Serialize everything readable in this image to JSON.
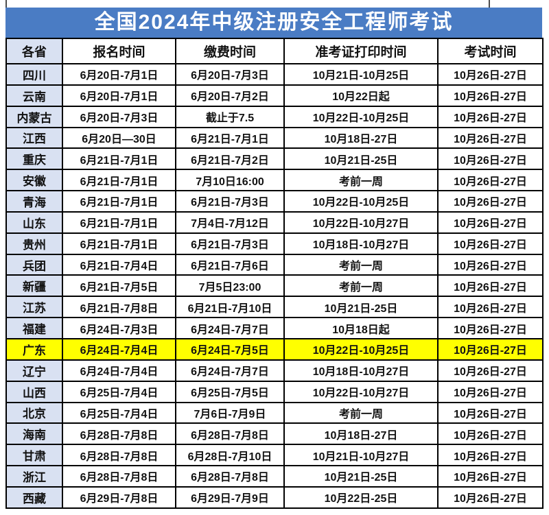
{
  "title": "全国2024年中级注册安全工程师考试",
  "colors": {
    "title_bg": "#4a7cc4",
    "title_text": "#ffffff",
    "province_col_bg": "#d9e1f2",
    "highlight_bg": "#ffff00",
    "grid_border": "#000000"
  },
  "table": {
    "headers": [
      "各省",
      "报名时间",
      "缴费时间",
      "准考证打印时间",
      "考试时间"
    ],
    "rows": [
      {
        "province": "四川",
        "cells": [
          "6月20日-7月1日",
          "6月20日-7月3日",
          "10月21日-10月25日",
          "10月26日-27日"
        ],
        "highlight": false
      },
      {
        "province": "云南",
        "cells": [
          "6月20日-7月1日",
          "6月20日-7月2日",
          "10月22日起",
          "10月26日-27日"
        ],
        "highlight": false
      },
      {
        "province": "内蒙古",
        "cells": [
          "6月20日-7月3日",
          "截止于7.5",
          "10月22日-10月25日",
          "10月26日-27日"
        ],
        "highlight": false
      },
      {
        "province": "江西",
        "cells": [
          "6月20日—30日",
          "6月21日-7月1日",
          "10月18日-27日",
          "10月26日-27日"
        ],
        "highlight": false
      },
      {
        "province": "重庆",
        "cells": [
          "6月21日-7月1日",
          "6月21日-7月2日",
          "10月21日-25日",
          "10月26日-27日"
        ],
        "highlight": false
      },
      {
        "province": "安徽",
        "cells": [
          "6月21日-7月1日",
          "7月10日16:00",
          "考前一周",
          "10月26日-27日"
        ],
        "highlight": false
      },
      {
        "province": "青海",
        "cells": [
          "6月21日-7月1日",
          "6月21日-7月3日",
          "10月22日-10月25日",
          "10月26日-27日"
        ],
        "highlight": false
      },
      {
        "province": "山东",
        "cells": [
          "6月21日-7月1日",
          "7月4日-7月12日",
          "10月22日-10月27日",
          "10月26日-27日"
        ],
        "highlight": false
      },
      {
        "province": "贵州",
        "cells": [
          "6月21日-7月1日",
          "6月21日-7月3日",
          "10月18日-10月27日",
          "10月26日-27日"
        ],
        "highlight": false
      },
      {
        "province": "兵团",
        "cells": [
          "6月21日-7月4日",
          "6月21日-7月6日",
          "考前一周",
          "10月26日-27日"
        ],
        "highlight": false
      },
      {
        "province": "新疆",
        "cells": [
          "6月21日-7月5日",
          "7月5日23:00",
          "考前一周",
          "10月26日-27日"
        ],
        "highlight": false
      },
      {
        "province": "江苏",
        "cells": [
          "6月21日-7月8日",
          "6月21日-7月10日",
          "10月21日-25日",
          "10月26日-27日"
        ],
        "highlight": false
      },
      {
        "province": "福建",
        "cells": [
          "6月24日-7月3日",
          "6月24日-7月7日",
          "10月18日起",
          "10月26日-27日"
        ],
        "highlight": false
      },
      {
        "province": "广东",
        "cells": [
          "6月24日-7月4日",
          "6月24日-7月5日",
          "10月22日-10月25日",
          "10月26日-27日"
        ],
        "highlight": true
      },
      {
        "province": "辽宁",
        "cells": [
          "6月24日-7月4日",
          "6月24日-7月7日",
          "10月18日-10月27日",
          "10月26日-27日"
        ],
        "highlight": false
      },
      {
        "province": "山西",
        "cells": [
          "6月25日-7月4日",
          "6月25日-7月5日",
          "10月22日-10月27日",
          "10月26日-27日"
        ],
        "highlight": false
      },
      {
        "province": "北京",
        "cells": [
          "6月25日-7月4日",
          "7月6日-7月9日",
          "考前一周",
          "10月26日-27日"
        ],
        "highlight": false
      },
      {
        "province": "海南",
        "cells": [
          "6月28日-7月8日",
          "6月28日-7月8日",
          "10月18日-27日",
          "10月26日-27日"
        ],
        "highlight": false
      },
      {
        "province": "甘肃",
        "cells": [
          "6月28日-7月8日",
          "6月28日-7月10日",
          "10月21日-10月27日",
          "10月26日-27日"
        ],
        "highlight": false
      },
      {
        "province": "浙江",
        "cells": [
          "6月28日-7月8日",
          "6月28日-7月8日",
          "10月21日-25日",
          "10月26日-27日"
        ],
        "highlight": false
      },
      {
        "province": "西藏",
        "cells": [
          "6月29日-7月8日",
          "6月29日-7月9日",
          "10月22日-25日",
          "10月26日-27日"
        ],
        "highlight": false
      }
    ]
  }
}
